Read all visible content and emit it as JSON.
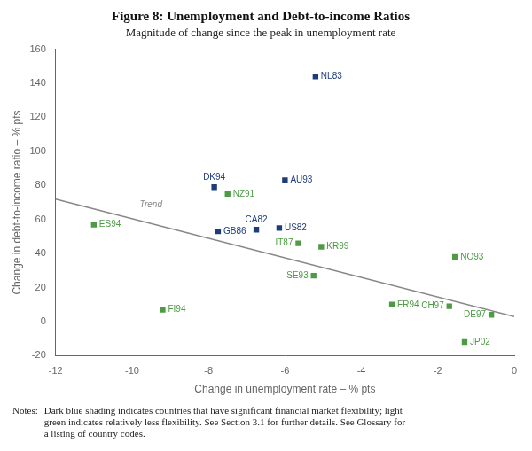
{
  "chart_data": {
    "type": "scatter",
    "title": "Figure 8: Unemployment and Debt-to-income Ratios",
    "subtitle": "Magnitude of change since the peak in unemployment rate",
    "xlabel": "Change in unemployment rate – % pts",
    "ylabel": "Change in debt-to-income ratio – % pts",
    "xlim": [
      -12,
      0
    ],
    "ylim": [
      -20,
      160
    ],
    "xticks": [
      -12,
      -10,
      -8,
      -6,
      -4,
      -2,
      0
    ],
    "yticks": [
      -20,
      0,
      20,
      40,
      60,
      80,
      100,
      120,
      140,
      160
    ],
    "grid": false,
    "series": [
      {
        "type": "line",
        "color": "#888888",
        "x": [
          -12,
          0
        ],
        "values": [
          72,
          3
        ]
      },
      {
        "type": "scatter",
        "color": "#1F3C7A",
        "marker": "square",
        "x": [
          -5.2,
          -6.0,
          -7.85,
          -7.75,
          -6.75,
          -6.15
        ],
        "values": [
          144,
          83,
          79,
          53,
          54,
          55
        ],
        "point_labels": [
          "NL83",
          "AU93",
          "DK94",
          "GB86",
          "CA82",
          "US82"
        ]
      },
      {
        "type": "scatter",
        "color": "#4E9A45",
        "marker": "square",
        "x": [
          -11.0,
          -9.2,
          -7.5,
          -5.65,
          -5.05,
          -5.25,
          -3.2,
          -1.55,
          -1.7,
          -0.6,
          -1.3
        ],
        "values": [
          57,
          7,
          75,
          46,
          44,
          27,
          10,
          38,
          9,
          4,
          -12
        ],
        "point_labels": [
          "ES94",
          "FI94",
          "NZ91",
          "IT87",
          "KR99",
          "SE93",
          "FR94",
          "NO93",
          "CH97",
          "DE97",
          "JP02"
        ]
      }
    ],
    "annotations": [
      {
        "text": "Trend",
        "x": -9.8,
        "y": 66,
        "color": "#888888"
      }
    ],
    "notes_label": "Notes:",
    "notes": "Dark blue shading indicates countries that have significant financial market flexibility; light\ngreen indicates relatively less flexibility. See Section 3.1 for further details. See Glossary for\na listing of country codes."
  }
}
